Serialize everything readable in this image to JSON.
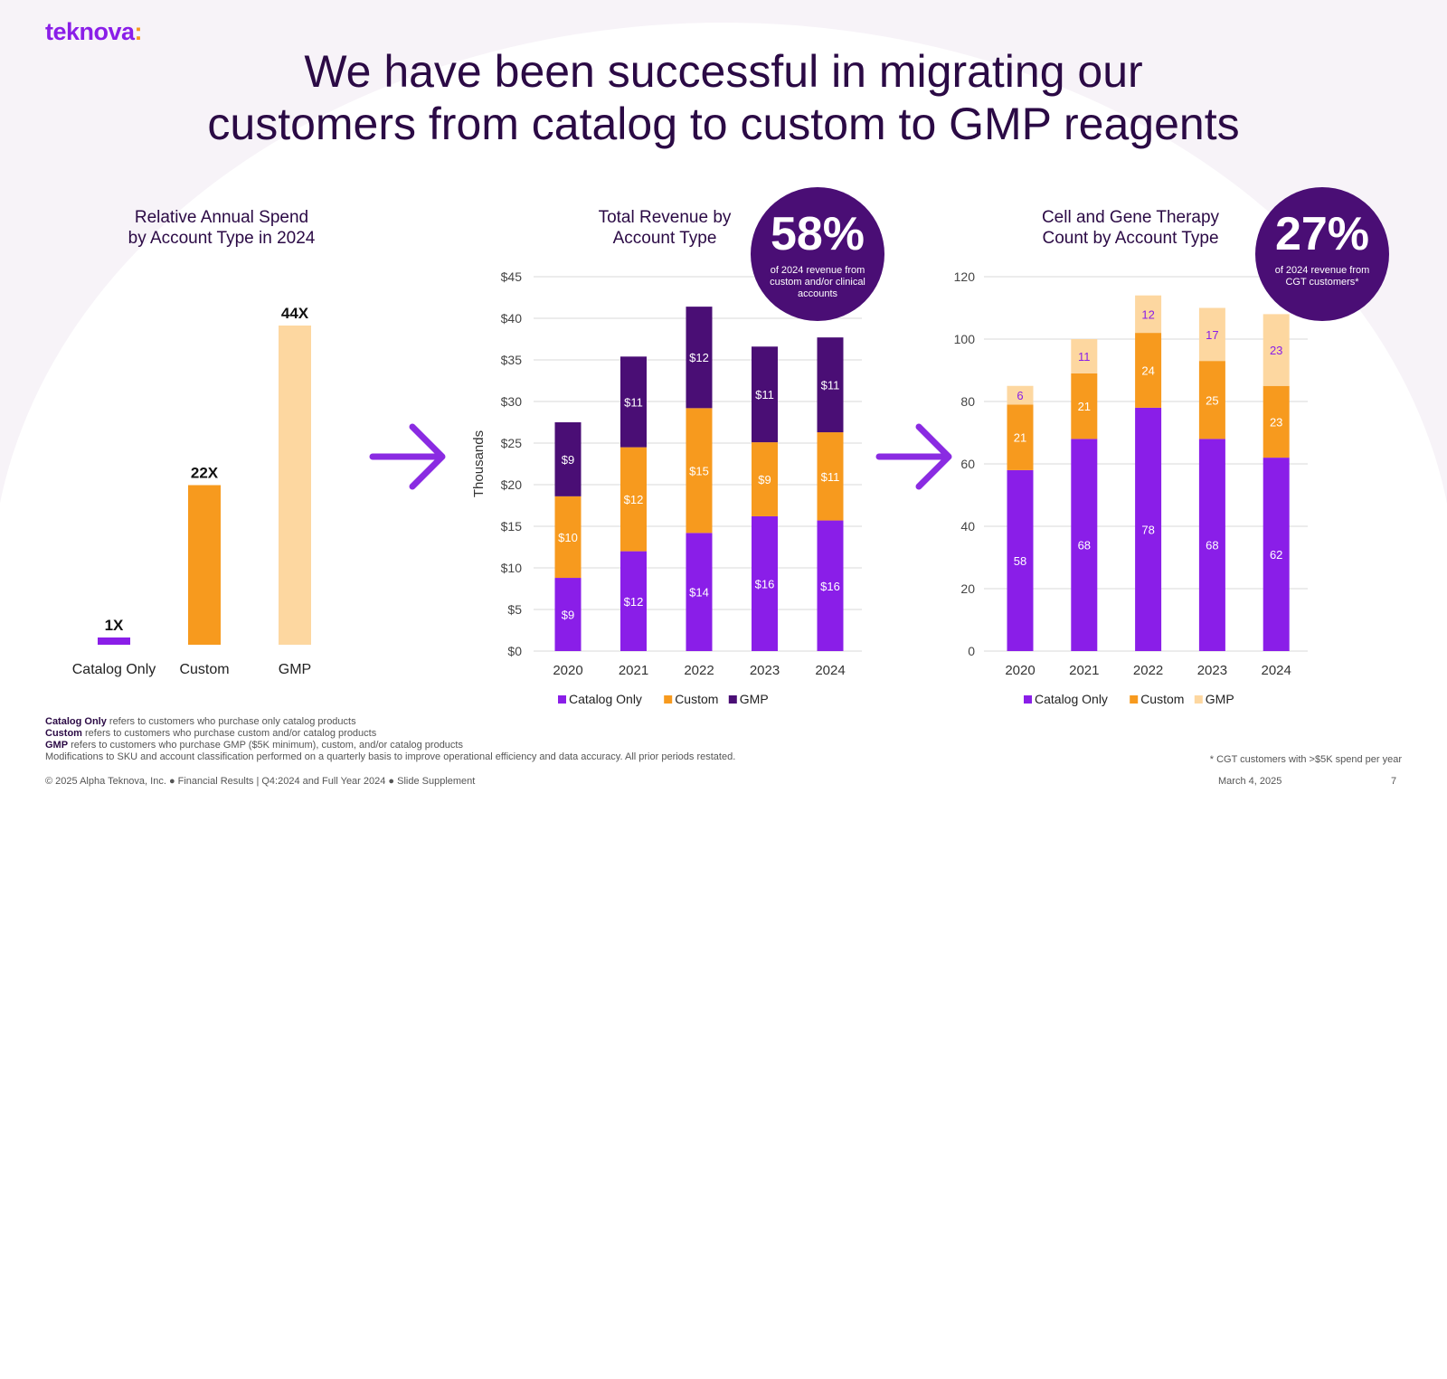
{
  "brand": {
    "logo_text": "teknova",
    "logo_colon": ":"
  },
  "title_line1": "We have been successful in migrating our",
  "title_line2": "customers from catalog to custom to GMP reagents",
  "colors": {
    "catalog": "#8a1ee8",
    "custom": "#f79a1e",
    "gmp": "#4a0e75",
    "gmp_light": "#fdd7a0",
    "arrow": "#8a2be2"
  },
  "relative_chart_title_1": "Relative Annual Spend",
  "relative_chart_title_2": "by Account Type in 2024",
  "revenue_chart_title_1": "Total Revenue by",
  "revenue_chart_title_2": "Account Type",
  "cgt_chart_title_1": "Cell and Gene Therapy",
  "cgt_chart_title_2": "Count by Account Type",
  "revenue_bubble": {
    "value": "58%",
    "text": "of 2024 revenue from custom and/or clinical accounts"
  },
  "cgt_bubble": {
    "value": "27%",
    "text": "of 2024 revenue from CGT customers*"
  },
  "chart_data": [
    {
      "type": "bar",
      "title": "Relative Annual Spend by Account Type in 2024",
      "categories": [
        "Catalog Only",
        "Custom",
        "GMP"
      ],
      "values": [
        1,
        22,
        44
      ],
      "value_labels": [
        "1X",
        "22X",
        "44X"
      ]
    },
    {
      "type": "bar",
      "stacked": true,
      "title": "Total Revenue by Account Type",
      "ylabel": "Thousands",
      "ylim": [
        0,
        45
      ],
      "yticks": [
        0,
        5,
        10,
        15,
        20,
        25,
        30,
        35,
        40,
        45
      ],
      "ytick_labels": [
        "$0",
        "$5",
        "$10",
        "$15",
        "$20",
        "$25",
        "$30",
        "$35",
        "$40",
        "$45"
      ],
      "categories": [
        "2020",
        "2021",
        "2022",
        "2023",
        "2024"
      ],
      "series": [
        {
          "name": "Catalog Only",
          "values": [
            8.8,
            12.0,
            14.2,
            16.2,
            15.7
          ],
          "labels": [
            "$9",
            "$12",
            "$14",
            "$16",
            "$16"
          ]
        },
        {
          "name": "Custom",
          "values": [
            9.8,
            12.5,
            15.0,
            8.9,
            10.6
          ],
          "labels": [
            "$10",
            "$12",
            "$15",
            "$9",
            "$11"
          ]
        },
        {
          "name": "GMP",
          "values": [
            8.9,
            10.9,
            12.2,
            11.5,
            11.4
          ],
          "labels": [
            "$9",
            "$11",
            "$12",
            "$11",
            "$11"
          ]
        }
      ],
      "legend": "bottom"
    },
    {
      "type": "bar",
      "stacked": true,
      "title": "Cell and Gene Therapy Count by Account Type",
      "ylim": [
        0,
        120
      ],
      "yticks": [
        0,
        20,
        40,
        60,
        80,
        100,
        120
      ],
      "ytick_labels": [
        "0",
        "20",
        "40",
        "60",
        "80",
        "100",
        "120"
      ],
      "categories": [
        "2020",
        "2021",
        "2022",
        "2023",
        "2024"
      ],
      "series": [
        {
          "name": "Catalog Only",
          "values": [
            58,
            68,
            78,
            68,
            62
          ],
          "labels": [
            "58",
            "68",
            "78",
            "68",
            "62"
          ]
        },
        {
          "name": "Custom",
          "values": [
            21,
            21,
            24,
            25,
            23
          ],
          "labels": [
            "21",
            "21",
            "24",
            "25",
            "23"
          ]
        },
        {
          "name": "GMP",
          "values": [
            6,
            11,
            12,
            17,
            23
          ],
          "labels": [
            "6",
            "11",
            "12",
            "17",
            "23"
          ]
        }
      ],
      "legend": "bottom"
    }
  ],
  "footnotes": {
    "catalog_term": "Catalog Only",
    "catalog_def": "refers to customers who purchase only catalog products",
    "custom_term": "Custom",
    "custom_def": "refers to customers who purchase custom and/or catalog products",
    "gmp_term": "GMP",
    "gmp_def": "refers to customers who purchase GMP ($5K minimum), custom, and/or catalog products",
    "modifications": "Modifications to SKU and account classification performed on a quarterly basis to improve operational efficiency and data accuracy. All prior periods restated.",
    "cgt_note": "* CGT customers with >$5K spend per year"
  },
  "footer": {
    "left": "© 2025 Alpha Teknova, Inc.  ●  Financial Results | Q4:2024 and Full Year 2024  ●  Slide Supplement",
    "date": "March 4, 2025",
    "page": "7"
  }
}
